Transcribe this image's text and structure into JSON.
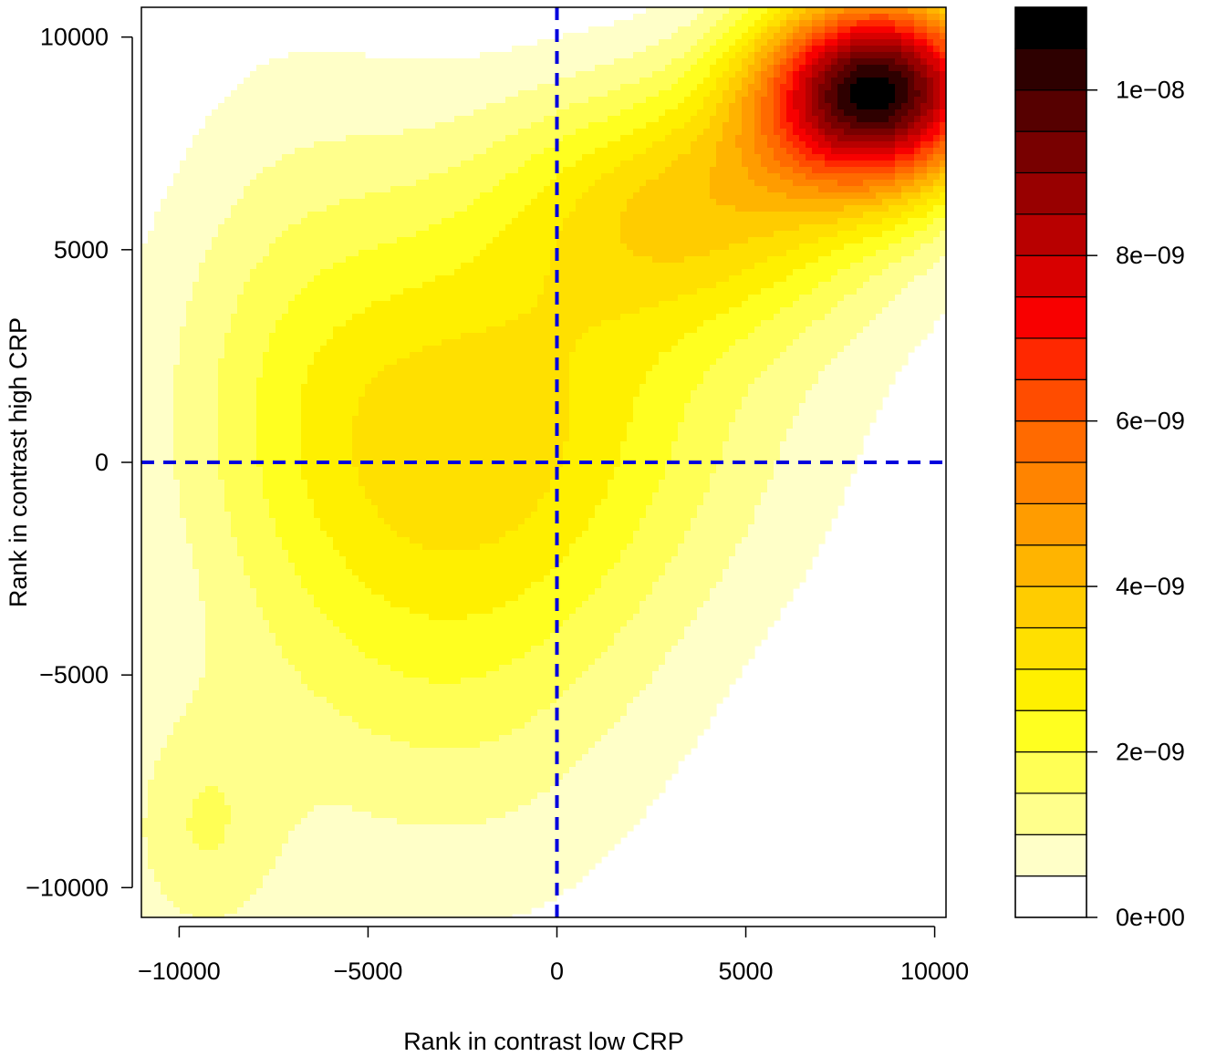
{
  "chart_data": {
    "type": "heatmap",
    "subtype": "filled-contour",
    "title": "",
    "xlabel": "Rank in contrast low CRP",
    "ylabel": "Rank in contrast high CRP",
    "xlim": [
      -11000,
      10300
    ],
    "ylim": [
      -10700,
      10700
    ],
    "x_ticks": [
      -10000,
      -5000,
      0,
      5000,
      10000
    ],
    "x_tick_labels": [
      "−10000",
      "−5000",
      "0",
      "5000",
      "10000"
    ],
    "y_ticks": [
      -10000,
      -5000,
      0,
      5000,
      10000
    ],
    "y_tick_labels": [
      "−10000",
      "−5000",
      "0",
      "5000",
      "10000"
    ],
    "reference_lines": [
      {
        "axis": "x",
        "value": 0,
        "style": "dashed",
        "color": "#0000dd"
      },
      {
        "axis": "y",
        "value": 0,
        "style": "dashed",
        "color": "#0000dd"
      }
    ],
    "density_peaks": [
      {
        "x": 8500,
        "y": 8800,
        "value": 1.08e-08
      },
      {
        "x": -9500,
        "y": -8800,
        "value": 2e-09
      }
    ],
    "colorbar": {
      "range": [
        0,
        1.1e-08
      ],
      "ticks": [
        0,
        2e-09,
        4e-09,
        6e-09,
        8e-09,
        1e-08
      ],
      "tick_labels": [
        "0e+00",
        "2e−09",
        "4e−09",
        "6e−09",
        "8e−09",
        "1e−08"
      ],
      "level_step": 5e-10,
      "colors": [
        "#ffffff",
        "#ffffc8",
        "#ffff8c",
        "#ffff55",
        "#ffff20",
        "#fff000",
        "#ffe000",
        "#ffcc00",
        "#ffb400",
        "#ff9c00",
        "#ff8400",
        "#ff6a00",
        "#ff4c00",
        "#ff2800",
        "#f80000",
        "#d80000",
        "#b80000",
        "#980000",
        "#780000",
        "#560000",
        "#2e0000",
        "#000000"
      ]
    }
  }
}
